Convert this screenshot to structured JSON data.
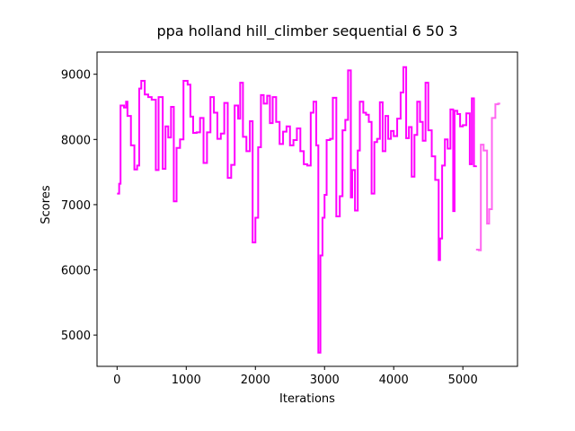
{
  "chart_data": {
    "type": "line",
    "title": "ppa holland hill_climber sequential 6 50 3",
    "xlabel": "Iterations",
    "ylabel": "Scores",
    "xlim": [
      -290,
      5790
    ],
    "ylim": [
      4520,
      9340
    ],
    "xticks": [
      0,
      1000,
      2000,
      3000,
      4000,
      5000
    ],
    "yticks": [
      5000,
      6000,
      7000,
      8000,
      9000
    ],
    "grid": false,
    "line_style": "steps",
    "series": [
      {
        "color": "#ff00ff",
        "points": [
          [
            0,
            7170
          ],
          [
            30,
            7320
          ],
          [
            50,
            8520
          ],
          [
            100,
            8490
          ],
          [
            130,
            8580
          ],
          [
            150,
            8360
          ],
          [
            200,
            7910
          ],
          [
            250,
            7540
          ],
          [
            290,
            7600
          ],
          [
            320,
            8780
          ],
          [
            350,
            8900
          ],
          [
            400,
            8690
          ],
          [
            450,
            8650
          ],
          [
            500,
            8610
          ],
          [
            560,
            7530
          ],
          [
            600,
            8650
          ],
          [
            660,
            7550
          ],
          [
            700,
            8200
          ],
          [
            740,
            8030
          ],
          [
            780,
            8500
          ],
          [
            820,
            7050
          ],
          [
            860,
            7870
          ],
          [
            910,
            8000
          ],
          [
            960,
            8900
          ],
          [
            1020,
            8840
          ],
          [
            1060,
            8350
          ],
          [
            1100,
            8100
          ],
          [
            1150,
            8110
          ],
          [
            1200,
            8330
          ],
          [
            1250,
            7640
          ],
          [
            1300,
            8110
          ],
          [
            1350,
            8650
          ],
          [
            1400,
            8410
          ],
          [
            1450,
            8010
          ],
          [
            1500,
            8090
          ],
          [
            1550,
            8560
          ],
          [
            1600,
            7410
          ],
          [
            1650,
            7610
          ],
          [
            1700,
            8520
          ],
          [
            1750,
            8320
          ],
          [
            1780,
            8870
          ],
          [
            1820,
            8040
          ],
          [
            1870,
            7820
          ],
          [
            1920,
            8280
          ],
          [
            1960,
            6420
          ],
          [
            2000,
            6800
          ],
          [
            2040,
            7880
          ],
          [
            2080,
            8680
          ],
          [
            2120,
            8550
          ],
          [
            2170,
            8670
          ],
          [
            2210,
            8250
          ],
          [
            2250,
            8650
          ],
          [
            2300,
            8270
          ],
          [
            2350,
            7930
          ],
          [
            2400,
            8120
          ],
          [
            2450,
            8200
          ],
          [
            2500,
            7910
          ],
          [
            2550,
            7990
          ],
          [
            2600,
            8170
          ],
          [
            2650,
            7820
          ],
          [
            2700,
            7620
          ],
          [
            2750,
            7600
          ],
          [
            2800,
            8410
          ],
          [
            2840,
            8580
          ],
          [
            2880,
            7910
          ],
          [
            2910,
            4730
          ],
          [
            2940,
            6220
          ],
          [
            2970,
            6800
          ],
          [
            3000,
            7150
          ],
          [
            3030,
            7990
          ],
          [
            3080,
            8010
          ],
          [
            3120,
            8640
          ],
          [
            3170,
            6820
          ],
          [
            3220,
            7130
          ],
          [
            3260,
            8140
          ],
          [
            3300,
            8300
          ],
          [
            3340,
            9060
          ],
          [
            3380,
            7110
          ],
          [
            3400,
            7530
          ],
          [
            3440,
            6910
          ],
          [
            3480,
            7830
          ],
          [
            3510,
            8580
          ],
          [
            3560,
            8410
          ],
          [
            3600,
            8380
          ],
          [
            3640,
            8270
          ],
          [
            3680,
            7170
          ],
          [
            3720,
            7960
          ],
          [
            3760,
            8010
          ],
          [
            3800,
            8570
          ],
          [
            3840,
            7820
          ],
          [
            3880,
            8360
          ],
          [
            3920,
            8010
          ],
          [
            3960,
            8130
          ],
          [
            4000,
            8050
          ],
          [
            4050,
            8320
          ],
          [
            4100,
            8720
          ],
          [
            4140,
            9110
          ],
          [
            4180,
            8020
          ],
          [
            4220,
            8190
          ],
          [
            4260,
            7430
          ],
          [
            4300,
            8070
          ],
          [
            4340,
            8580
          ],
          [
            4380,
            8270
          ],
          [
            4420,
            7980
          ],
          [
            4460,
            8870
          ],
          [
            4500,
            8140
          ],
          [
            4550,
            7740
          ],
          [
            4600,
            7380
          ],
          [
            4650,
            6150
          ],
          [
            4670,
            6480
          ],
          [
            4700,
            7600
          ],
          [
            4740,
            8000
          ],
          [
            4780,
            7860
          ],
          [
            4820,
            8460
          ],
          [
            4860,
            6900
          ],
          [
            4880,
            8440
          ],
          [
            4920,
            8390
          ],
          [
            4960,
            8200
          ],
          [
            5000,
            8220
          ],
          [
            5050,
            8400
          ],
          [
            5100,
            7620
          ],
          [
            5130,
            8630
          ],
          [
            5160,
            7590
          ],
          [
            5190,
            7600
          ]
        ]
      },
      {
        "color": "#ff66f0",
        "points": [
          [
            5190,
            6310
          ],
          [
            5230,
            6300
          ],
          [
            5260,
            7920
          ],
          [
            5300,
            7830
          ],
          [
            5350,
            6710
          ],
          [
            5380,
            6930
          ],
          [
            5420,
            8330
          ],
          [
            5470,
            8540
          ],
          [
            5510,
            8550
          ],
          [
            5540,
            8550
          ]
        ]
      }
    ]
  }
}
